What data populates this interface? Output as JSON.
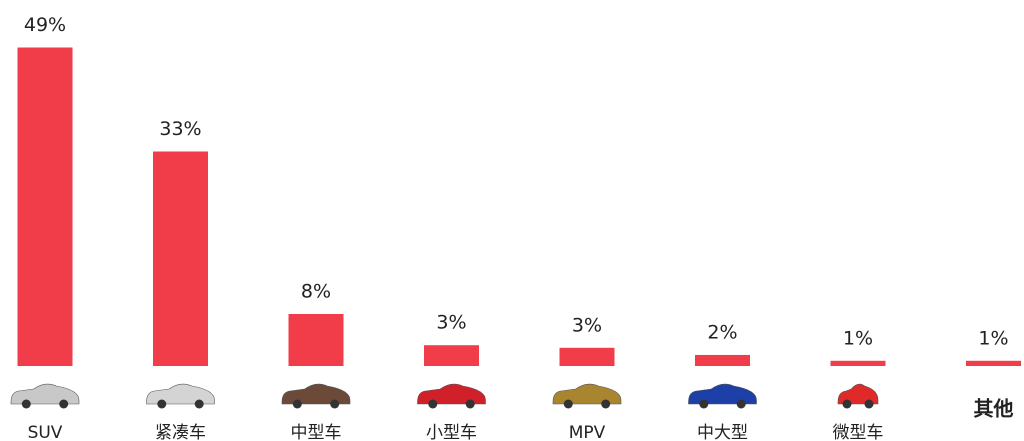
{
  "chart_data": {
    "type": "bar",
    "categories": [
      "SUV",
      "紧凑车",
      "中型车",
      "小型车",
      "MPV",
      "中大型",
      "微型车",
      "其他"
    ],
    "values": [
      49,
      33,
      8,
      3.2,
      2.8,
      1.7,
      0.8,
      0.8
    ],
    "value_labels": [
      "49%",
      "33%",
      "8%",
      "3%",
      "3%",
      "2%",
      "1%",
      "1%"
    ],
    "color": "#f13d4a",
    "ylim": [
      0,
      50
    ]
  }
}
